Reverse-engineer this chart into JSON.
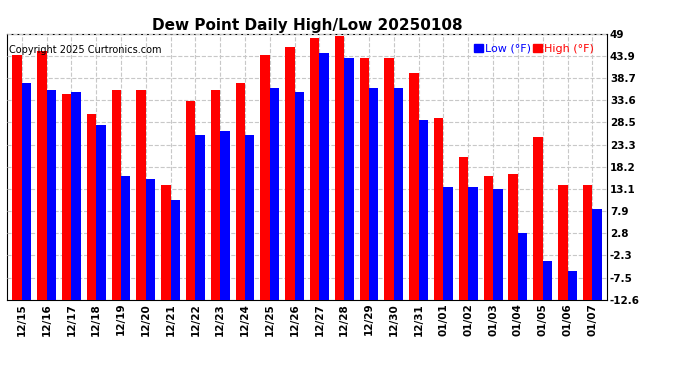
{
  "title": "Dew Point Daily High/Low 20250108",
  "copyright": "Copyright 2025 Curtronics.com",
  "legend_low": "Low (°F)",
  "legend_high": "High (°F)",
  "color_low": "#0000ff",
  "color_high": "#ff0000",
  "background": "#ffffff",
  "dates": [
    "12/15",
    "12/16",
    "12/17",
    "12/18",
    "12/19",
    "12/20",
    "12/21",
    "12/22",
    "12/23",
    "12/24",
    "12/25",
    "12/26",
    "12/27",
    "12/28",
    "12/29",
    "12/30",
    "12/31",
    "01/01",
    "01/02",
    "01/03",
    "01/04",
    "01/05",
    "01/06",
    "01/07"
  ],
  "high": [
    44.0,
    45.0,
    35.0,
    30.5,
    36.0,
    36.0,
    14.0,
    33.5,
    36.0,
    37.5,
    44.0,
    46.0,
    48.0,
    48.5,
    43.5,
    43.5,
    40.0,
    29.5,
    20.5,
    16.0,
    16.5,
    25.0,
    14.0,
    14.0
  ],
  "low": [
    37.5,
    36.0,
    35.5,
    28.0,
    16.0,
    15.5,
    10.5,
    25.5,
    26.5,
    25.5,
    36.5,
    35.5,
    44.5,
    43.5,
    36.5,
    36.5,
    29.0,
    13.5,
    13.5,
    13.0,
    3.0,
    -3.5,
    -6.0,
    8.5
  ],
  "ylim": [
    -12.6,
    49.0
  ],
  "yticks": [
    49.0,
    43.9,
    38.7,
    33.6,
    28.5,
    23.3,
    18.2,
    13.1,
    7.9,
    2.8,
    -2.3,
    -7.5,
    -12.6
  ],
  "grid_color": "#c8c8c8",
  "bar_width": 0.38,
  "figsize": [
    6.9,
    3.75
  ],
  "dpi": 100
}
